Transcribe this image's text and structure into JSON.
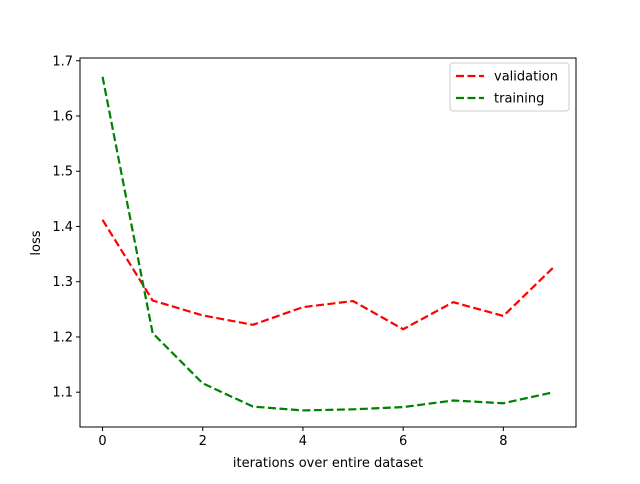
{
  "chart_data": {
    "type": "line",
    "title": "",
    "xlabel": "iterations over entire dataset",
    "ylabel": "loss",
    "xlim": [
      -0.45,
      9.45
    ],
    "ylim": [
      1.037,
      1.705
    ],
    "xticks": [
      0,
      2,
      4,
      6,
      8
    ],
    "xtick_labels": [
      "0",
      "2",
      "4",
      "6",
      "8"
    ],
    "yticks": [
      1.1,
      1.2,
      1.3,
      1.4,
      1.5,
      1.6,
      1.7
    ],
    "ytick_labels": [
      "1.1",
      "1.2",
      "1.3",
      "1.4",
      "1.5",
      "1.6",
      "1.7"
    ],
    "grid": false,
    "legend_position": "top-right",
    "x": [
      0,
      1,
      2,
      3,
      4,
      5,
      6,
      7,
      8,
      9
    ],
    "series": [
      {
        "name": "validation",
        "color": "#ff0000",
        "line_style": "dashed",
        "values": [
          1.412,
          1.266,
          1.239,
          1.222,
          1.254,
          1.265,
          1.214,
          1.263,
          1.238,
          1.326
        ]
      },
      {
        "name": "training",
        "color": "#008000",
        "line_style": "dashed",
        "values": [
          1.671,
          1.207,
          1.116,
          1.074,
          1.067,
          1.069,
          1.073,
          1.085,
          1.08,
          1.1
        ]
      }
    ]
  }
}
